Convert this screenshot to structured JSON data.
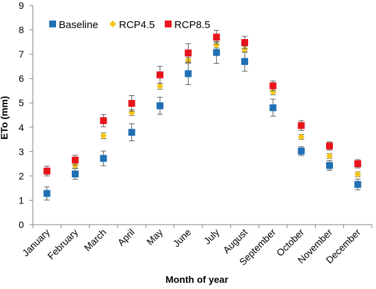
{
  "chart_data": {
    "type": "scatter",
    "title": "",
    "xlabel": "Month of year",
    "ylabel": "ETo (mm)",
    "ylim": [
      0,
      9
    ],
    "yticks": [
      0,
      1,
      2,
      3,
      4,
      5,
      6,
      7,
      8,
      9
    ],
    "grid": false,
    "legend_position": "top-left",
    "categories": [
      "January",
      "February",
      "March",
      "April",
      "May",
      "June",
      "July",
      "August",
      "September",
      "October",
      "November",
      "December"
    ],
    "series": [
      {
        "name": "Baseline",
        "color": "#1F6FB5",
        "marker": "square",
        "values": [
          1.28,
          2.08,
          2.72,
          3.79,
          4.88,
          6.2,
          7.07,
          6.7,
          4.8,
          3.02,
          2.43,
          1.65
        ],
        "error": [
          0.27,
          0.22,
          0.3,
          0.35,
          0.35,
          0.45,
          0.45,
          0.4,
          0.35,
          0.18,
          0.2,
          0.22
        ]
      },
      {
        "name": "RCP4.5",
        "color": "#F5C518",
        "marker": "diamond",
        "values": [
          2.2,
          2.43,
          3.65,
          4.6,
          5.68,
          6.75,
          7.38,
          7.2,
          5.45,
          3.6,
          2.82,
          2.07
        ],
        "error": [
          0.1,
          0.1,
          0.12,
          0.12,
          0.12,
          0.12,
          0.12,
          0.12,
          0.12,
          0.1,
          0.1,
          0.1
        ]
      },
      {
        "name": "RCP8.5",
        "color": "#E8141B",
        "marker": "square",
        "values": [
          2.2,
          2.65,
          4.27,
          4.98,
          6.15,
          7.05,
          7.7,
          7.48,
          5.7,
          4.07,
          3.23,
          2.5
        ],
        "error": [
          0.2,
          0.2,
          0.25,
          0.32,
          0.35,
          0.38,
          0.28,
          0.25,
          0.2,
          0.2,
          0.17,
          0.17
        ]
      }
    ]
  }
}
